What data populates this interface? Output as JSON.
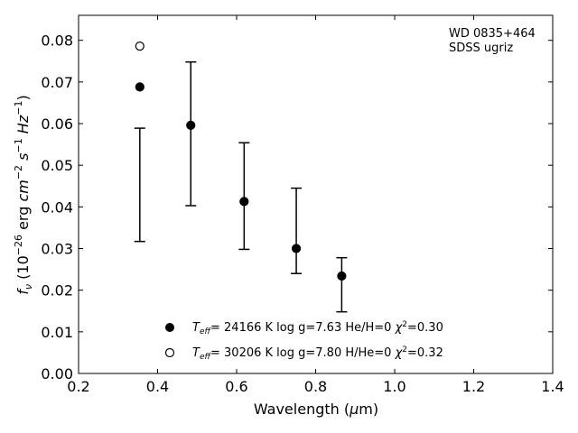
{
  "chart_data": {
    "type": "scatter",
    "annotation": [
      "WD 0835+464",
      "SDSS ugriz"
    ],
    "xlabel": "Wavelength (μm)",
    "ylabel": "f_ν (10^-26 erg cm^-2 s^-1 Hz^-1)",
    "xlim": [
      0.2,
      1.4
    ],
    "ylim": [
      0.0,
      0.086
    ],
    "xticks": [
      0.2,
      0.4,
      0.6,
      0.8,
      1.0,
      1.2,
      1.4
    ],
    "xtick_labels": [
      "0.2",
      "0.4",
      "0.6",
      "0.8",
      "1.0",
      "1.2",
      "1.4"
    ],
    "yticks": [
      0.0,
      0.01,
      0.02,
      0.03,
      0.04,
      0.05,
      0.06,
      0.07,
      0.08
    ],
    "ytick_labels": [
      "0.00",
      "0.01",
      "0.02",
      "0.03",
      "0.04",
      "0.05",
      "0.06",
      "0.07",
      "0.08"
    ],
    "grid": false,
    "observed": {
      "x": [
        0.355,
        0.484,
        0.619,
        0.751,
        0.866
      ],
      "y_low": [
        0.0317,
        0.0403,
        0.0298,
        0.024,
        0.0148
      ],
      "y_high": [
        0.0589,
        0.0748,
        0.0554,
        0.0445,
        0.0278
      ]
    },
    "series": [
      {
        "marker": "filled-circle",
        "legend": {
          "teff": "= 24166 K  log g=7.63  He/H=0  ",
          "chi": "=0.30"
        },
        "x": [
          0.355,
          0.484,
          0.619,
          0.751,
          0.866
        ],
        "y": [
          0.0688,
          0.0596,
          0.0413,
          0.03,
          0.0234
        ]
      },
      {
        "marker": "open-circle",
        "legend": {
          "teff": "= 30206 K  log g=7.80  H/He=0  ",
          "chi": "=0.32"
        },
        "x": [
          0.355
        ],
        "y": [
          0.0786
        ]
      }
    ],
    "legend_placement": "lower-center"
  }
}
